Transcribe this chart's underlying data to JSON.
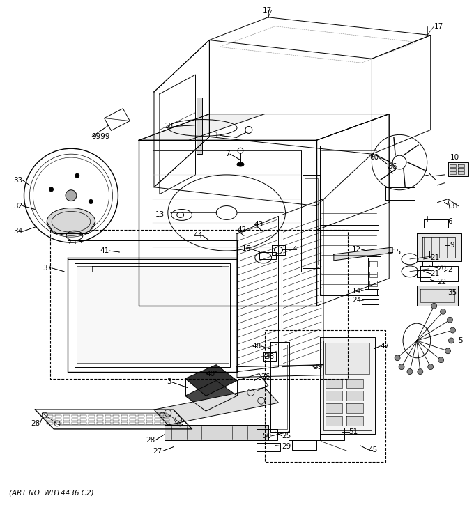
{
  "art_no": "(ART NO. WB14436 C2)",
  "background_color": "#ffffff",
  "figsize": [
    6.8,
    7.25
  ],
  "dpi": 100
}
